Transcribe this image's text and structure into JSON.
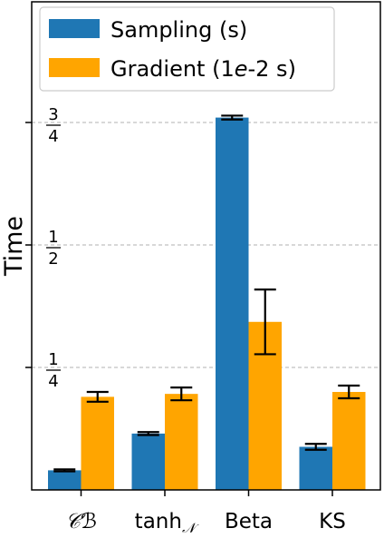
{
  "chart_data": {
    "type": "bar",
    "title": "",
    "xlabel": "",
    "ylabel": "Time",
    "ylim": [
      0,
      1.0
    ],
    "grid": "y-dashed",
    "legend_position": "top-left",
    "categories": [
      "CB",
      "tanh_N",
      "Beta",
      "KS"
    ],
    "category_labels": [
      {
        "main": "𝒞ℬ",
        "sub": ""
      },
      {
        "main": "tanh",
        "sub": "𝒩"
      },
      {
        "main": "Beta",
        "sub": ""
      },
      {
        "main": "KS",
        "sub": ""
      }
    ],
    "yticks": [
      {
        "value": 0.25,
        "num": "1",
        "den": "4"
      },
      {
        "value": 0.5,
        "num": "1",
        "den": "2"
      },
      {
        "value": 0.75,
        "num": "3",
        "den": "4"
      }
    ],
    "series": [
      {
        "name": "Sampling (s)",
        "color": "#1f77b4",
        "values": [
          0.04,
          0.115,
          0.76,
          0.088
        ],
        "errors": [
          0.002,
          0.003,
          0.004,
          0.006
        ]
      },
      {
        "name": "Gradient (1e-2 s)",
        "color": "#ffa500",
        "values": [
          0.19,
          0.196,
          0.343,
          0.2
        ],
        "errors": [
          0.01,
          0.013,
          0.066,
          0.013
        ]
      }
    ],
    "legend_labels": [
      {
        "pre": "Sampling (s)",
        "italic": "",
        "post": ""
      },
      {
        "pre": "Gradient (1",
        "italic": "e",
        "post": "-2 s)"
      }
    ]
  }
}
